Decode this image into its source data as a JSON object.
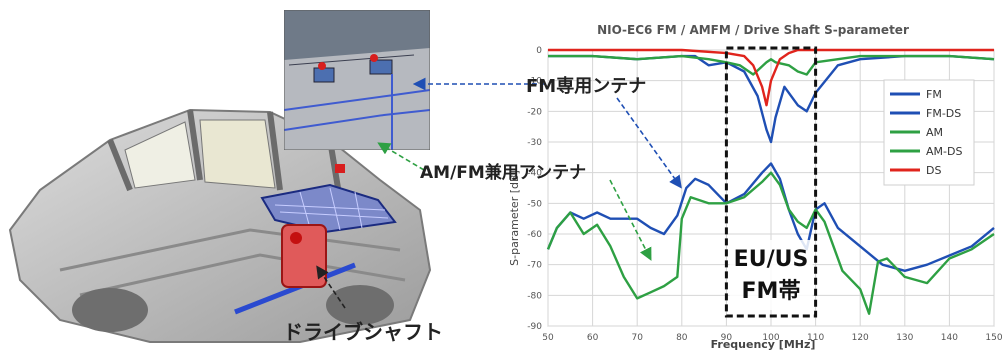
{
  "callouts": {
    "fm_antenna": "FM専用ンテナ",
    "amfm_antenna": "AM/FM兼用アンテナ",
    "drive_shaft": "ドライブシャフト"
  },
  "highlight_box": {
    "line1": "EU/US",
    "line2": "FM帯",
    "x_range": [
      90,
      110
    ]
  },
  "chart_data": {
    "type": "line",
    "title": "NIO-EC6 FM / AMFM / Drive Shaft  S-parameter",
    "xlabel": "Frequency [MHz]",
    "ylabel": "S-parameter [dB]",
    "xlim": [
      50,
      150
    ],
    "ylim": [
      -90,
      0
    ],
    "xticks": [
      50,
      60,
      70,
      80,
      90,
      100,
      110,
      120,
      130,
      140,
      150
    ],
    "yticks": [
      0,
      -10,
      -20,
      -30,
      -40,
      -50,
      -60,
      -70,
      -80,
      -90
    ],
    "grid": true,
    "legend_position": "right",
    "series": [
      {
        "name": "FM",
        "color": "#1f4fb4",
        "x": [
          50,
          60,
          70,
          80,
          83,
          86,
          90,
          94,
          97,
          99,
          100,
          101,
          103,
          106,
          108,
          110,
          115,
          120,
          130,
          140,
          150
        ],
        "y": [
          -2,
          -2,
          -3,
          -2,
          -2,
          -5,
          -4,
          -7,
          -15,
          -26,
          -30,
          -22,
          -12,
          -18,
          -20,
          -14,
          -5,
          -3,
          -2,
          -2,
          -3
        ]
      },
      {
        "name": "FM-DS",
        "color": "#1f4fb4",
        "x": [
          50,
          52,
          55,
          58,
          61,
          64,
          67,
          70,
          73,
          76,
          79,
          81,
          83,
          86,
          90,
          94,
          98,
          100,
          102,
          104,
          106,
          108,
          110,
          112,
          115,
          120,
          125,
          130,
          135,
          140,
          145,
          150
        ],
        "y": [
          -65,
          -58,
          -53,
          -55,
          -53,
          -55,
          -55,
          -55,
          -58,
          -60,
          -54,
          -45,
          -42,
          -44,
          -50,
          -47,
          -40,
          -37,
          -42,
          -52,
          -60,
          -65,
          -52,
          -50,
          -58,
          -64,
          -70,
          -72,
          -70,
          -67,
          -64,
          -58
        ]
      },
      {
        "name": "AM",
        "color": "#2ea043",
        "x": [
          50,
          52,
          55,
          58,
          61,
          64,
          67,
          70,
          73,
          76,
          79,
          80,
          82,
          86,
          90,
          94,
          98,
          100,
          102,
          104,
          106,
          108,
          110,
          112,
          116,
          120,
          122,
          124,
          126,
          130,
          135,
          140,
          145,
          150
        ],
        "y": [
          -65,
          -58,
          -53,
          -60,
          -57,
          -64,
          -74,
          -81,
          -79,
          -77,
          -74,
          -55,
          -48,
          -50,
          -50,
          -48,
          -43,
          -40,
          -44,
          -52,
          -56,
          -58,
          -52,
          -56,
          -72,
          -78,
          -86,
          -69,
          -68,
          -74,
          -76,
          -68,
          -65,
          -60
        ]
      },
      {
        "name": "AM-DS",
        "color": "#2ea043",
        "x": [
          50,
          60,
          70,
          80,
          86,
          90,
          93,
          96,
          99,
          100,
          101,
          104,
          106,
          108,
          110,
          120,
          130,
          140,
          150
        ],
        "y": [
          -2,
          -2,
          -3,
          -2,
          -3,
          -4,
          -5,
          -8,
          -4,
          -3,
          -4,
          -5,
          -7,
          -8,
          -4,
          -2,
          -2,
          -2,
          -3
        ]
      },
      {
        "name": "DS",
        "color": "#e0241c",
        "x": [
          50,
          60,
          70,
          80,
          90,
          94,
          96,
          98,
          99,
          100,
          102,
          104,
          106,
          110,
          120,
          130,
          140,
          150
        ],
        "y": [
          0,
          0,
          0,
          0,
          -1,
          -2,
          -5,
          -12,
          -18,
          -10,
          -3,
          -1,
          0,
          0,
          0,
          0,
          0,
          0
        ]
      }
    ]
  }
}
